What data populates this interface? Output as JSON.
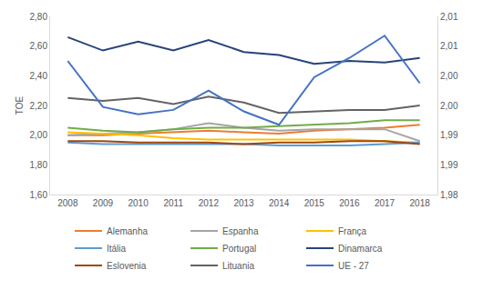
{
  "chart_data": {
    "type": "line",
    "y_label": "TOE",
    "categories": [
      "2008",
      "2009",
      "2010",
      "2011",
      "2012",
      "2013",
      "2014",
      "2015",
      "2016",
      "2017",
      "2018"
    ],
    "ylim": [
      1.6,
      2.8
    ],
    "yticks": [
      {
        "value": 1.6,
        "label": "1,60"
      },
      {
        "value": 1.8,
        "label": "1,80"
      },
      {
        "value": 2.0,
        "label": "2,00"
      },
      {
        "value": 2.2,
        "label": "2,20"
      },
      {
        "value": 2.4,
        "label": "2,40"
      },
      {
        "value": 2.6,
        "label": "2,60"
      },
      {
        "value": 2.8,
        "label": "2,80"
      }
    ],
    "y2lim": [
      1.98,
      2.01
    ],
    "y2ticks": [
      {
        "value": 1.98,
        "label": "1,98"
      },
      {
        "value": 1.985,
        "label": "1,99"
      },
      {
        "value": 1.99,
        "label": "1,99"
      },
      {
        "value": 1.995,
        "label": "2,00"
      },
      {
        "value": 2.0,
        "label": "2,00"
      },
      {
        "value": 2.005,
        "label": "2,01"
      },
      {
        "value": 2.01,
        "label": "2,01"
      }
    ],
    "grid": false,
    "legend": "bottom",
    "series": [
      {
        "name": "Alemanha",
        "color": "#ED7D31",
        "values": [
          2.0,
          2.0,
          2.01,
          2.02,
          2.03,
          2.02,
          2.01,
          2.03,
          2.04,
          2.05,
          2.07
        ]
      },
      {
        "name": "Espanha",
        "color": "#A5A5A5",
        "values": [
          2.0,
          2.01,
          2.02,
          2.04,
          2.08,
          2.05,
          2.03,
          2.04,
          2.04,
          2.04,
          1.96
        ]
      },
      {
        "name": "França",
        "color": "#FFC000",
        "values": [
          2.02,
          2.01,
          2.0,
          1.98,
          1.97,
          1.97,
          1.97,
          1.97,
          1.97,
          1.96,
          1.95
        ]
      },
      {
        "name": "Itália",
        "color": "#5B9BD5",
        "values": [
          1.95,
          1.94,
          1.94,
          1.94,
          1.94,
          1.94,
          1.93,
          1.93,
          1.93,
          1.94,
          1.95
        ]
      },
      {
        "name": "Portugal",
        "color": "#70AD47",
        "values": [
          2.05,
          2.03,
          2.02,
          2.04,
          2.05,
          2.05,
          2.06,
          2.07,
          2.08,
          2.1,
          2.1
        ]
      },
      {
        "name": "Dinamarca",
        "color": "#264478",
        "values": [
          2.66,
          2.57,
          2.63,
          2.57,
          2.64,
          2.56,
          2.54,
          2.48,
          2.5,
          2.49,
          2.52
        ]
      },
      {
        "name": "Eslovenia",
        "color": "#9E480E",
        "values": [
          1.96,
          1.96,
          1.95,
          1.95,
          1.95,
          1.94,
          1.95,
          1.95,
          1.96,
          1.96,
          1.94
        ]
      },
      {
        "name": "Lituania",
        "color": "#636363",
        "values": [
          2.25,
          2.23,
          2.25,
          2.21,
          2.26,
          2.22,
          2.15,
          2.16,
          2.17,
          2.17,
          2.2
        ]
      },
      {
        "name": "UE - 27",
        "color": "#4472C4",
        "axis": "y2",
        "values": [
          2.0025,
          1.99475,
          1.9935,
          1.99425,
          1.9975,
          1.994,
          1.99175,
          1.99975,
          2.003,
          2.00675,
          1.99875
        ]
      }
    ]
  }
}
